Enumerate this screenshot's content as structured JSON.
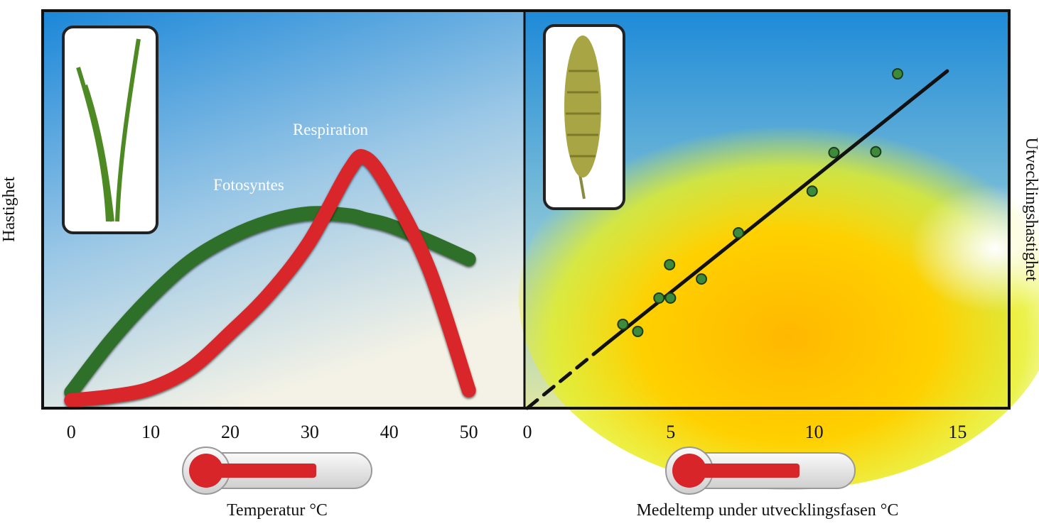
{
  "chart_data": [
    {
      "type": "line",
      "ylabel": "Hastighet",
      "xlabel": "Temperatur °C",
      "x": [
        0,
        5,
        10,
        15,
        20,
        25,
        30,
        35,
        37,
        40,
        45,
        50
      ],
      "xlim": [
        -3.6,
        57
      ],
      "xticks": [
        0,
        10,
        20,
        30,
        40,
        50
      ],
      "ylim": [
        0,
        100
      ],
      "series": [
        {
          "name": "Fotosyntes",
          "color": "#2f6f2c",
          "values": [
            4,
            17,
            28,
            37,
            43,
            47,
            49,
            48.5,
            47.5,
            46,
            42,
            37.5
          ]
        },
        {
          "name": "Respiration",
          "color": "#d8252a",
          "values": [
            2,
            3,
            5,
            10,
            19,
            29,
            42,
            60,
            63,
            55,
            35,
            4.5
          ]
        }
      ]
    },
    {
      "type": "scatter",
      "ylabel": "Utvecklingshastighet",
      "xlabel": "Medeltemp under utvecklingsfasen °C",
      "x": [
        3.33,
        3.85,
        4.59,
        4.96,
        4.99,
        6.07,
        7.36,
        9.93,
        10.69,
        12.15,
        12.91
      ],
      "values": [
        21.1,
        19.3,
        27.7,
        36.1,
        27.7,
        32.5,
        44.1,
        54.6,
        64.3,
        64.5,
        84.1
      ],
      "color": "#3c8a3a",
      "xlim": [
        -0.1,
        16.8
      ],
      "xticks": [
        0,
        5,
        10,
        15
      ],
      "ylim": [
        0,
        100
      ],
      "fit": {
        "x": [
          0,
          2.67,
          14.64
        ],
        "values": [
          0,
          15.7,
          84.8
        ],
        "color": "#111111",
        "dashed": [
          true,
          false
        ]
      }
    }
  ]
}
